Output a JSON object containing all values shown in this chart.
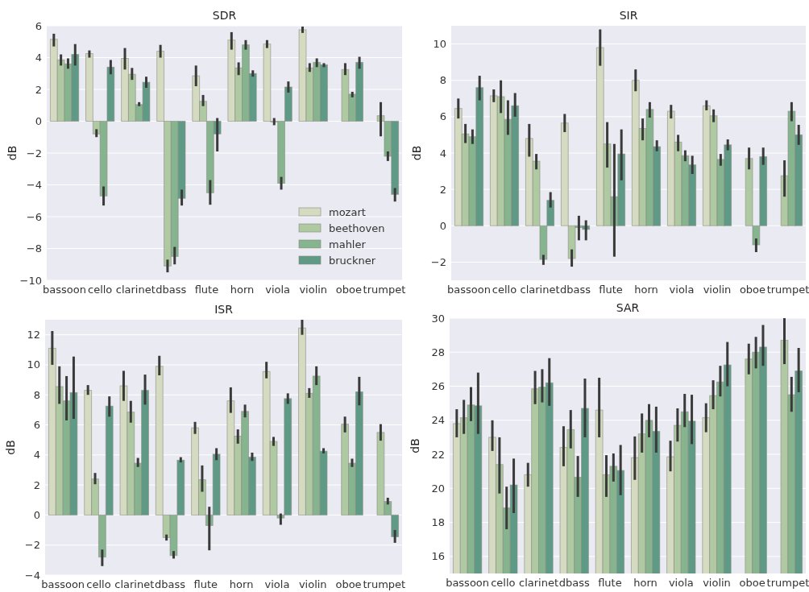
{
  "chart_data": [
    {
      "type": "bar",
      "title": "SDR",
      "ylabel": "dB",
      "categories": [
        "bassoon",
        "cello",
        "clarinet",
        "dbass",
        "flute",
        "horn",
        "viola",
        "violin",
        "oboe",
        "trumpet"
      ],
      "ylim": [
        -10,
        6
      ],
      "yticks": [
        -10,
        -8,
        -6,
        -4,
        -2,
        0,
        2,
        4,
        6
      ],
      "grid": "y",
      "legend": "bottom right",
      "series": [
        {
          "name": "mozart",
          "color": "#d5dbc0",
          "values": [
            5.15,
            4.25,
            3.95,
            4.4,
            2.85,
            5.1,
            4.85,
            5.75,
            null,
            null
          ],
          "errors": [
            [
              4.7,
              5.5
            ],
            [
              4.0,
              4.45
            ],
            [
              3.25,
              4.6
            ],
            [
              4.0,
              4.8
            ],
            [
              2.2,
              3.5
            ],
            [
              4.5,
              5.6
            ],
            [
              4.6,
              5.1
            ],
            [
              5.55,
              5.95
            ],
            null,
            null
          ]
        },
        {
          "name": "beethoven",
          "color": "#afc9a3",
          "values": [
            3.85,
            -0.8,
            2.95,
            -9.1,
            1.25,
            3.35,
            -0.05,
            3.35,
            3.25,
            0.35
          ],
          "errors": [
            [
              3.5,
              4.2
            ],
            [
              -1.0,
              -0.5
            ],
            [
              2.6,
              3.35
            ],
            [
              -9.5,
              -8.7
            ],
            [
              0.95,
              1.65
            ],
            [
              2.9,
              3.7
            ],
            [
              -0.25,
              0.2
            ],
            [
              3.1,
              3.65
            ],
            [
              2.9,
              3.65
            ],
            [
              -0.95,
              1.2
            ]
          ]
        },
        {
          "name": "mahler",
          "color": "#86b48f",
          "values": [
            3.6,
            -4.7,
            1.05,
            -8.5,
            -4.5,
            4.8,
            -3.9,
            3.7,
            1.7,
            -2.2
          ],
          "errors": [
            [
              3.3,
              3.95
            ],
            [
              -5.3,
              -4.1
            ],
            [
              0.95,
              1.2
            ],
            [
              -9.0,
              -7.9
            ],
            [
              -5.25,
              -3.7
            ],
            [
              4.5,
              5.1
            ],
            [
              -4.3,
              -3.5
            ],
            [
              3.4,
              3.95
            ],
            [
              1.5,
              1.85
            ],
            [
              -2.5,
              -1.9
            ]
          ]
        },
        {
          "name": "bruckner",
          "color": "#5f9a87",
          "values": [
            4.2,
            3.4,
            2.45,
            -4.85,
            -0.8,
            3.0,
            2.15,
            3.55,
            3.7,
            -4.6
          ],
          "errors": [
            [
              3.5,
              4.85
            ],
            [
              2.95,
              3.85
            ],
            [
              2.1,
              2.8
            ],
            [
              -5.3,
              -4.3
            ],
            [
              -1.9,
              0.2
            ],
            [
              2.8,
              3.2
            ],
            [
              1.8,
              2.5
            ],
            [
              3.4,
              3.65
            ],
            [
              3.3,
              4.05
            ],
            [
              -5.05,
              -4.2
            ]
          ]
        }
      ]
    },
    {
      "type": "bar",
      "title": "SIR",
      "ylabel": "dB",
      "categories": [
        "bassoon",
        "cello",
        "clarinet",
        "dbass",
        "flute",
        "horn",
        "viola",
        "violin",
        "oboe",
        "trumpet"
      ],
      "ylim": [
        -3,
        11
      ],
      "yticks": [
        -2,
        0,
        2,
        4,
        6,
        8,
        10
      ],
      "grid": "y",
      "series": [
        {
          "color": "#d5dbc0",
          "values": [
            6.45,
            7.15,
            4.8,
            5.65,
            9.8,
            8.0,
            6.3,
            6.6,
            null,
            null
          ],
          "errors": [
            [
              5.9,
              7.0
            ],
            [
              6.8,
              7.5
            ],
            [
              3.8,
              5.6
            ],
            [
              5.15,
              6.15
            ],
            [
              8.8,
              10.8
            ],
            [
              7.4,
              8.6
            ],
            [
              5.9,
              6.65
            ],
            [
              6.35,
              6.9
            ],
            null,
            null
          ]
        },
        {
          "color": "#afc9a3",
          "values": [
            5.05,
            7.1,
            3.55,
            -1.8,
            4.5,
            5.35,
            4.6,
            6.05,
            3.7,
            2.75
          ],
          "errors": [
            [
              4.55,
              5.6
            ],
            [
              6.2,
              8.0
            ],
            [
              3.1,
              3.95
            ],
            [
              -2.25,
              -1.3
            ],
            [
              3.2,
              5.7
            ],
            [
              4.7,
              5.9
            ],
            [
              4.1,
              5.0
            ],
            [
              5.7,
              6.4
            ],
            [
              3.1,
              4.3
            ],
            [
              1.6,
              3.6
            ]
          ]
        },
        {
          "color": "#86b48f",
          "values": [
            4.9,
            5.85,
            -1.85,
            -0.1,
            1.6,
            6.4,
            3.85,
            3.65,
            -1.05,
            6.3
          ],
          "errors": [
            [
              4.5,
              5.3
            ],
            [
              5.0,
              6.9
            ],
            [
              -2.15,
              -1.6
            ],
            [
              -0.8,
              0.55
            ],
            [
              -1.7,
              4.5
            ],
            [
              5.95,
              6.8
            ],
            [
              3.55,
              4.15
            ],
            [
              3.3,
              3.95
            ],
            [
              -1.45,
              -0.7
            ],
            [
              5.75,
              6.8
            ]
          ]
        },
        {
          "color": "#5f9a87",
          "values": [
            7.6,
            6.6,
            1.4,
            -0.2,
            3.95,
            4.35,
            3.35,
            4.45,
            3.8,
            5.0
          ],
          "errors": [
            [
              6.9,
              8.25
            ],
            [
              6.0,
              7.3
            ],
            [
              1.0,
              1.85
            ],
            [
              -0.8,
              0.3
            ],
            [
              2.5,
              5.3
            ],
            [
              4.1,
              4.7
            ],
            [
              2.85,
              3.85
            ],
            [
              4.15,
              4.75
            ],
            [
              3.35,
              4.3
            ],
            [
              4.45,
              5.55
            ]
          ]
        }
      ]
    },
    {
      "type": "bar",
      "title": "ISR",
      "ylabel": "dB",
      "categories": [
        "bassoon",
        "cello",
        "clarinet",
        "dbass",
        "flute",
        "horn",
        "viola",
        "violin",
        "oboe",
        "trumpet"
      ],
      "ylim": [
        -4,
        13
      ],
      "yticks": [
        -4,
        -2,
        0,
        2,
        4,
        6,
        8,
        10,
        12
      ],
      "grid": "y",
      "series": [
        {
          "color": "#d5dbc0",
          "values": [
            11.1,
            8.3,
            8.6,
            9.9,
            5.8,
            7.6,
            9.55,
            12.45,
            null,
            null
          ],
          "errors": [
            [
              10.0,
              12.25
            ],
            [
              8.0,
              8.65
            ],
            [
              7.6,
              9.6
            ],
            [
              9.3,
              10.6
            ],
            [
              5.4,
              6.2
            ],
            [
              6.8,
              8.5
            ],
            [
              9.1,
              10.2
            ],
            [
              12.0,
              13.0
            ],
            null,
            null
          ]
        },
        {
          "color": "#afc9a3",
          "values": [
            8.55,
            2.4,
            6.85,
            -1.5,
            2.35,
            5.25,
            4.9,
            8.1,
            6.05,
            5.5
          ],
          "errors": [
            [
              7.4,
              9.9
            ],
            [
              2.05,
              2.8
            ],
            [
              6.15,
              7.6
            ],
            [
              -1.7,
              -1.3
            ],
            [
              1.55,
              3.3
            ],
            [
              4.75,
              5.7
            ],
            [
              4.6,
              5.2
            ],
            [
              7.8,
              8.45
            ],
            [
              5.5,
              6.55
            ],
            [
              4.95,
              6.05
            ]
          ]
        },
        {
          "color": "#86b48f",
          "values": [
            7.6,
            -2.8,
            3.45,
            -2.7,
            -0.7,
            6.9,
            -0.2,
            9.25,
            3.45,
            0.9
          ],
          "errors": [
            [
              6.3,
              9.25
            ],
            [
              -3.4,
              -2.3
            ],
            [
              3.2,
              3.8
            ],
            [
              -2.9,
              -2.4
            ],
            [
              -2.35,
              0.55
            ],
            [
              6.5,
              7.35
            ],
            [
              -0.65,
              0.1
            ],
            [
              8.65,
              9.9
            ],
            [
              3.2,
              3.75
            ],
            [
              0.7,
              1.15
            ]
          ]
        },
        {
          "color": "#5f9a87",
          "values": [
            8.15,
            7.25,
            8.3,
            3.65,
            4.05,
            3.85,
            7.75,
            4.25,
            8.2,
            -1.45
          ],
          "errors": [
            [
              6.4,
              10.55
            ],
            [
              6.55,
              7.9
            ],
            [
              7.35,
              9.35
            ],
            [
              3.5,
              3.85
            ],
            [
              3.65,
              4.45
            ],
            [
              3.6,
              4.15
            ],
            [
              7.4,
              8.1
            ],
            [
              4.1,
              4.45
            ],
            [
              7.3,
              9.2
            ],
            [
              -1.85,
              -1.0
            ]
          ]
        }
      ]
    },
    {
      "type": "bar",
      "title": "SAR",
      "ylabel": "dB",
      "categories": [
        "bassoon",
        "cello",
        "clarinet",
        "dbass",
        "flute",
        "horn",
        "viola",
        "violin",
        "oboe",
        "trumpet"
      ],
      "ylim": [
        15,
        30
      ],
      "yticks": [
        16,
        18,
        20,
        22,
        24,
        26,
        28,
        30
      ],
      "grid": "y",
      "series": [
        {
          "color": "#d5dbc0",
          "values": [
            23.8,
            23.0,
            20.8,
            22.4,
            24.6,
            21.8,
            21.85,
            24.15,
            null,
            null
          ],
          "errors": [
            [
              23.0,
              24.65
            ],
            [
              22.2,
              24.0
            ],
            [
              20.1,
              21.5
            ],
            [
              21.3,
              23.65
            ],
            [
              23.0,
              26.5
            ],
            [
              20.5,
              23.05
            ],
            [
              21.0,
              22.8
            ],
            [
              23.3,
              25.0
            ],
            null,
            null
          ]
        },
        {
          "color": "#afc9a3",
          "values": [
            24.15,
            21.4,
            25.85,
            23.45,
            20.8,
            23.2,
            23.7,
            25.45,
            27.6,
            28.7
          ],
          "errors": [
            [
              23.2,
              25.2
            ],
            [
              19.7,
              23.0
            ],
            [
              24.95,
              26.9
            ],
            [
              22.35,
              24.6
            ],
            [
              19.5,
              21.95
            ],
            [
              22.1,
              24.4
            ],
            [
              22.75,
              24.7
            ],
            [
              24.65,
              26.35
            ],
            [
              26.7,
              28.5
            ],
            [
              27.3,
              30.0
            ]
          ]
        },
        {
          "color": "#86b48f",
          "values": [
            24.9,
            18.85,
            25.95,
            20.65,
            21.3,
            24.0,
            24.5,
            26.25,
            28.0,
            25.5
          ],
          "errors": [
            [
              23.95,
              25.95
            ],
            [
              17.6,
              20.1
            ],
            [
              25.05,
              27.0
            ],
            [
              19.5,
              21.9
            ],
            [
              20.4,
              22.05
            ],
            [
              23.0,
              24.95
            ],
            [
              23.6,
              25.55
            ],
            [
              25.4,
              27.2
            ],
            [
              27.05,
              28.9
            ],
            [
              24.5,
              26.55
            ]
          ]
        },
        {
          "color": "#5f9a87",
          "values": [
            24.85,
            20.2,
            26.2,
            24.7,
            21.05,
            23.35,
            23.95,
            27.25,
            28.3,
            26.9
          ],
          "errors": [
            [
              23.2,
              26.8
            ],
            [
              18.55,
              21.75
            ],
            [
              24.85,
              27.65
            ],
            [
              23.0,
              26.45
            ],
            [
              19.6,
              22.55
            ],
            [
              22.1,
              24.8
            ],
            [
              22.6,
              25.5
            ],
            [
              26.0,
              28.6
            ],
            [
              27.2,
              29.6
            ],
            [
              25.65,
              28.25
            ]
          ]
        }
      ]
    }
  ]
}
